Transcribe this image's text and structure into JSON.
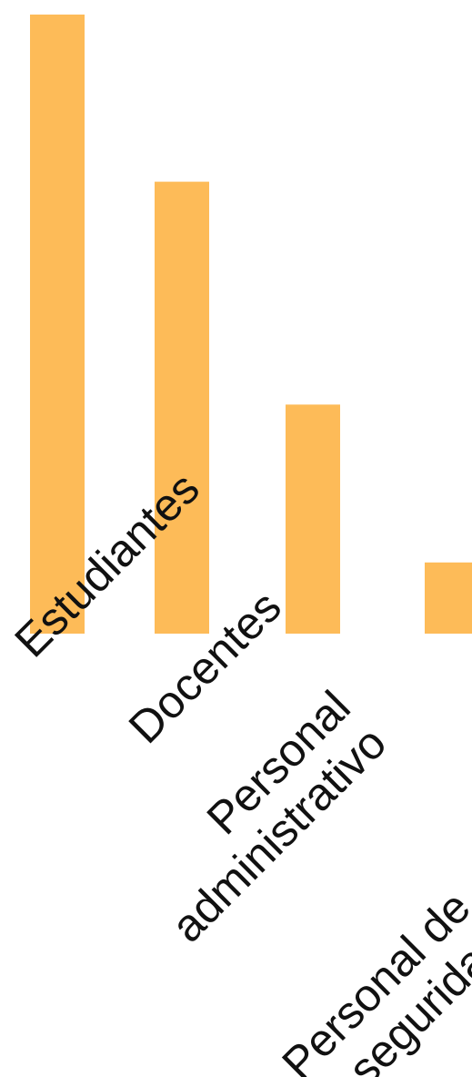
{
  "chart_data": {
    "type": "bar",
    "categories": [
      "Estudiantes",
      "Docentes",
      "Personal administrativo",
      "Personal de seguridad"
    ],
    "label_lines": [
      [
        "Estudiantes"
      ],
      [
        "Docentes"
      ],
      [
        "Personal",
        "administrativo"
      ],
      [
        "Personal de",
        "seguridad"
      ]
    ],
    "values": [
      100,
      73,
      37,
      11.5
    ],
    "ylim": [
      0,
      100
    ],
    "bar_color": "#FDBB58",
    "grid": false,
    "legend": "none"
  }
}
